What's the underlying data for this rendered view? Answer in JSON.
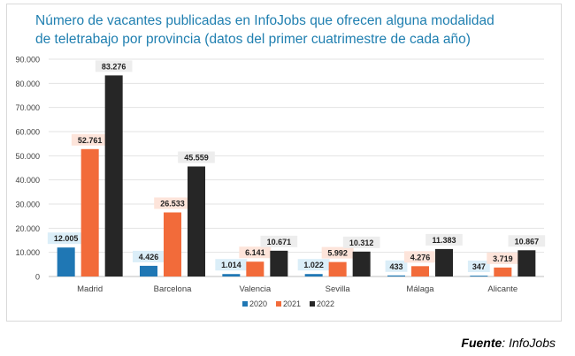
{
  "chart_data": {
    "type": "bar",
    "title": "Número de vacantes publicadas en InfoJobs que ofrecen alguna modalidad de teletrabajo por provincia (datos del primer cuatrimestre de cada año)",
    "xlabel": "",
    "ylabel": "",
    "ylim": [
      0,
      90000
    ],
    "yticks": [
      "0",
      "10.000",
      "20.000",
      "30.000",
      "40.000",
      "50.000",
      "60.000",
      "70.000",
      "80.000",
      "90.000"
    ],
    "ytick_values": [
      0,
      10000,
      20000,
      30000,
      40000,
      50000,
      60000,
      70000,
      80000,
      90000
    ],
    "grid": true,
    "legend_position": "bottom",
    "categories": [
      "Madrid",
      "Barcelona",
      "Valencia",
      "Sevilla",
      "Málaga",
      "Alicante"
    ],
    "series": [
      {
        "name": "2020",
        "color": "#1f77b4",
        "label_bg": "#dbeef8",
        "values": [
          12005,
          4426,
          1014,
          1022,
          433,
          347
        ],
        "labels": [
          "12.005",
          "4.426",
          "1.014",
          "1.022",
          "433",
          "347"
        ]
      },
      {
        "name": "2021",
        "color": "#f26b3a",
        "label_bg": "#fde4da",
        "values": [
          52761,
          26533,
          6141,
          5992,
          4276,
          3719
        ],
        "labels": [
          "52.761",
          "26.533",
          "6.141",
          "5.992",
          "4.276",
          "3.719"
        ]
      },
      {
        "name": "2022",
        "color": "#262626",
        "label_bg": "#ededed",
        "values": [
          83276,
          45559,
          10671,
          10312,
          11383,
          10867
        ],
        "labels": [
          "83.276",
          "45.559",
          "10.671",
          "10.312",
          "11.383",
          "10.867"
        ]
      }
    ]
  },
  "source": {
    "prefix": "Fuente",
    "suffix": ": InfoJobs"
  }
}
